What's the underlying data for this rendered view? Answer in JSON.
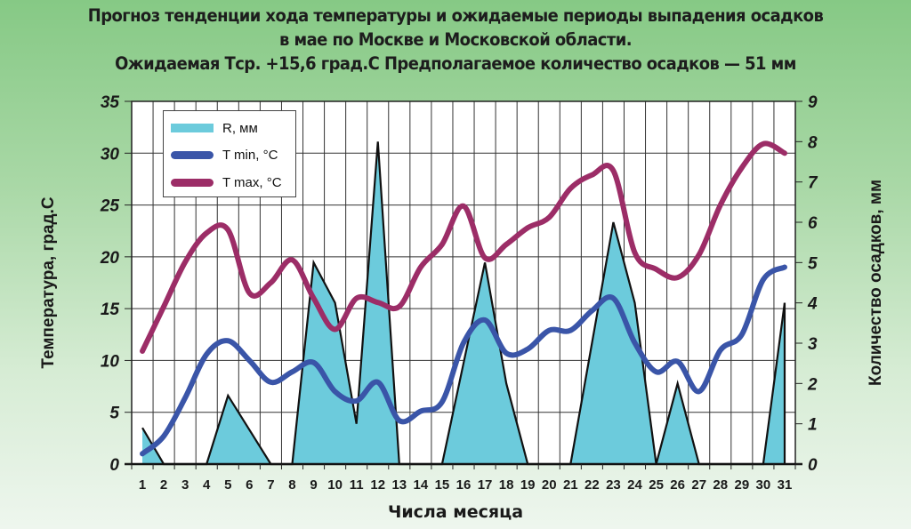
{
  "title": {
    "line1": "Прогноз тенденции хода температуры и ожидаемые периоды выпадения осадков",
    "line2": "в мае по Москве и Московской области.",
    "line3": "Ожидаемая Тср. +15,6 град.С Предполагаемое количество осадков — 51 мм"
  },
  "axes": {
    "ylabel_left": "Температура, град.С",
    "ylabel_right": "Количество осадков, мм",
    "xlabel": "Числа месяца"
  },
  "legend": {
    "items": [
      {
        "label": "R, мм",
        "color": "#6ccbdc",
        "kind": "area"
      },
      {
        "label": "T min, °C",
        "color": "#3a55a8",
        "kind": "line"
      },
      {
        "label": "T max, °C",
        "color": "#9c2d67",
        "kind": "line"
      }
    ]
  },
  "colors": {
    "precip_fill": "#6ccbdc",
    "precip_stroke": "#111111",
    "tmin": "#3a55a8",
    "tmax": "#9c2d67",
    "grid": "#333333"
  },
  "chart_data": {
    "type": "line",
    "title": "Прогноз тенденции хода температуры и ожидаемые периоды выпадения осадков в мае по Москве и Московской области.",
    "subtitle": "Ожидаемая Тср. +15,6 град.С Предполагаемое количество осадков — 51 мм",
    "xlabel": "Числа месяца",
    "ylabel": "Температура, град.С",
    "ylabel_right": "Количество осадков, мм",
    "x": [
      1,
      2,
      3,
      4,
      5,
      6,
      7,
      8,
      9,
      10,
      11,
      12,
      13,
      14,
      15,
      16,
      17,
      18,
      19,
      20,
      21,
      22,
      23,
      24,
      25,
      26,
      27,
      28,
      29,
      30,
      31
    ],
    "ylim": [
      0,
      35
    ],
    "yticks": [
      0,
      5,
      10,
      15,
      20,
      25,
      30,
      35
    ],
    "ylim_right": [
      0,
      9
    ],
    "yticks_right": [
      0,
      1,
      2,
      3,
      4,
      5,
      6,
      7,
      8,
      9
    ],
    "grid": true,
    "legend_position": "upper left",
    "series": [
      {
        "name": "R, мм",
        "type": "area",
        "axis": "right",
        "values": [
          0.9,
          0,
          0,
          0,
          1.7,
          0.85,
          0,
          0,
          5.0,
          4.0,
          1.0,
          8.0,
          0,
          0,
          0,
          2.5,
          5.0,
          2.0,
          0,
          0,
          0,
          3.0,
          6.0,
          4.0,
          0,
          2.0,
          0,
          0,
          0,
          0,
          4.0
        ]
      },
      {
        "name": "T min, °C",
        "type": "line",
        "axis": "left",
        "values": [
          1.0,
          2.7,
          6.4,
          10.6,
          11.9,
          10.0,
          7.9,
          8.9,
          9.8,
          7.0,
          6.1,
          7.9,
          4.2,
          5.1,
          6.0,
          11.7,
          13.9,
          10.7,
          11.1,
          12.9,
          12.9,
          14.8,
          16.0,
          11.7,
          8.9,
          9.9,
          7.0,
          11.0,
          12.5,
          17.8,
          19.0
        ]
      },
      {
        "name": "T max, °C",
        "type": "line",
        "axis": "left",
        "values": [
          10.9,
          15.2,
          19.5,
          22.3,
          22.6,
          16.5,
          17.5,
          19.7,
          16.0,
          13.0,
          16.0,
          15.6,
          15.2,
          19.0,
          21.2,
          24.9,
          19.9,
          21.2,
          22.8,
          23.8,
          26.6,
          27.9,
          28.3,
          20.4,
          18.8,
          18.0,
          20.2,
          25.0,
          28.6,
          30.9,
          30.0
        ]
      }
    ]
  }
}
